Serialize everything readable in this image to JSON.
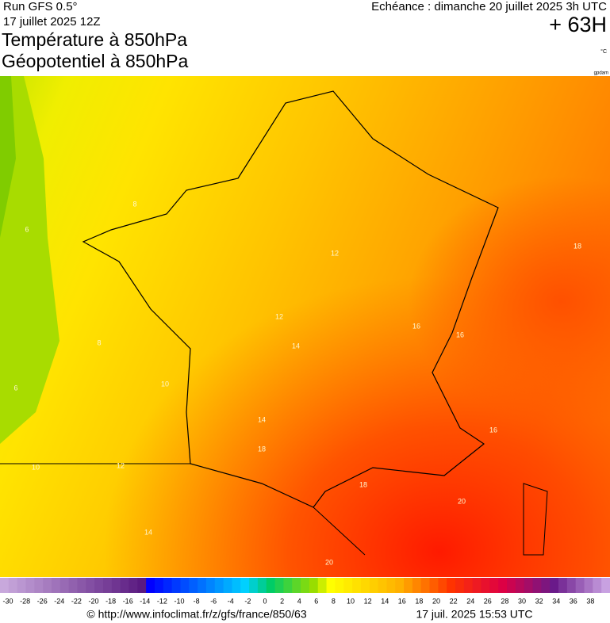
{
  "header": {
    "run": "Run GFS 0.5°",
    "date": "17 juillet 2025 12Z",
    "title_1": "Température à 850hPa",
    "title_2": "Géopotentiel à 850hPa",
    "valid": "Echéance : dimanche 20 juillet 2025 3h UTC",
    "lead": "+ 63H",
    "unit": "°C",
    "credit": "gpdam"
  },
  "map": {
    "contour_labels": [
      8,
      6,
      8,
      6,
      10,
      10,
      12,
      12,
      14,
      14,
      16,
      16,
      16,
      18,
      18,
      18,
      20,
      20,
      14,
      12
    ]
  },
  "legend": {
    "labels": [
      -30,
      -28,
      -26,
      -24,
      -22,
      -20,
      -18,
      -16,
      -14,
      -12,
      -10,
      -8,
      -6,
      -4,
      -2,
      0,
      2,
      4,
      6,
      8,
      10,
      12,
      14,
      16,
      18,
      20,
      22,
      24,
      26,
      28,
      30,
      32,
      34,
      36,
      38
    ]
  },
  "footer": {
    "url": "© http://www.infoclimat.fr/z/gfs/france/850/63",
    "stamp": "17 juil. 2025 15:53 UTC"
  }
}
